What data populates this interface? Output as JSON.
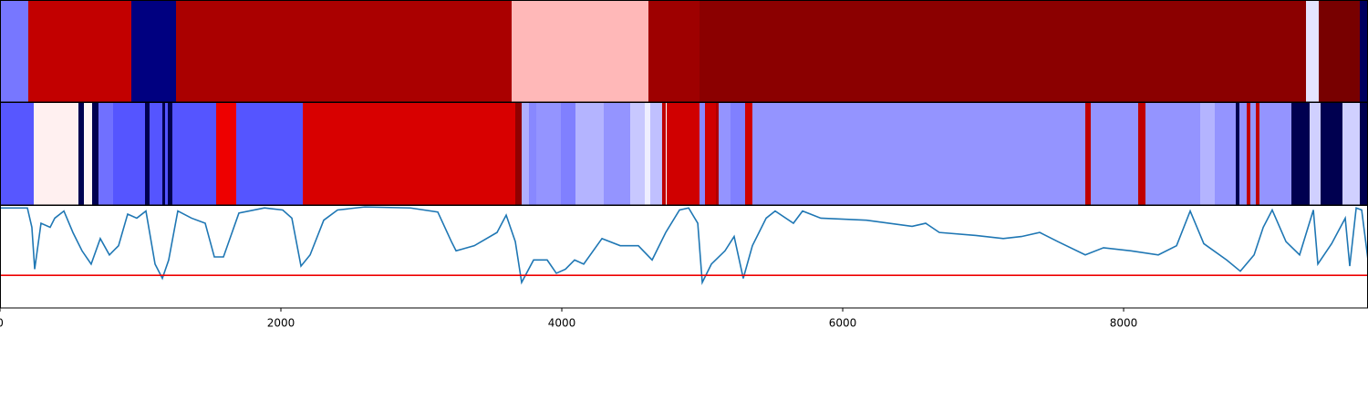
{
  "chart_data": [
    {
      "type": "segments",
      "xlim": [
        0,
        9740
      ],
      "bins": [
        0,
        201,
        935,
        1253,
        3643,
        4617,
        4981,
        9299,
        9390,
        9682,
        9740
      ],
      "colors": [
        "#7777ff",
        "#c20000",
        "#000080",
        "#aa0000",
        "#ffb8b8",
        "#9e0000",
        "#8b0000",
        "#e4e4ff",
        "#780000",
        "#000060"
      ]
    },
    {
      "type": "segments",
      "xlim": [
        0,
        9740
      ],
      "bins": [
        0,
        240,
        558,
        597,
        656,
        701,
        805,
        1032,
        1065,
        1156,
        1175,
        1195,
        1227,
        1539,
        1682,
        2156,
        3669,
        3714,
        3766,
        3818,
        3994,
        4097,
        4299,
        4487,
        4591,
        4630,
        4714,
        4740,
        4747,
        4981,
        5019,
        5097,
        5117,
        5201,
        5305,
        5357,
        7727,
        7766,
        8104,
        8156,
        8545,
        8649,
        8799,
        8825,
        8877,
        8903,
        8942,
        8968,
        9195,
        9325,
        9403,
        9558,
        9682,
        9740
      ],
      "colors": [
        "#5757ff",
        "#fff0f0",
        "#000050",
        "#fff5f5",
        "#000050",
        "#7070ff",
        "#5555ff",
        "#000050",
        "#5555ff",
        "#000050",
        "#5555ff",
        "#000050",
        "#5555ff",
        "#ee0000",
        "#5555ff",
        "#d80000",
        "#900000",
        "#b0b0ff",
        "#8888ff",
        "#9494ff",
        "#8080ff",
        "#b4b4ff",
        "#9494ff",
        "#c8c8ff",
        "#eeeeff",
        "#c0c0ff",
        "#c00000",
        "#ffffff",
        "#d00000",
        "#8888ff",
        "#d00000",
        "#b00000",
        "#9494ff",
        "#8080ff",
        "#d00000",
        "#9494ff",
        "#c00000",
        "#9494ff",
        "#c00000",
        "#9494ff",
        "#b4b4ff",
        "#9494ff",
        "#000050",
        "#9494ff",
        "#c00000",
        "#9494ff",
        "#c00000",
        "#9494ff",
        "#000050",
        "#d0d0ff",
        "#000050",
        "#d0d0ff",
        "#000050"
      ]
    },
    {
      "type": "line",
      "xlim": [
        0,
        9740
      ],
      "ylim": [
        0,
        1
      ],
      "xticks": [
        0,
        2000,
        4000,
        6000,
        8000
      ],
      "color": "#1f77b4",
      "hline": 0.32,
      "hline_color": "#ee0000",
      "x": [
        0,
        195,
        227,
        247,
        292,
        357,
        390,
        455,
        519,
        584,
        649,
        714,
        779,
        844,
        909,
        974,
        1039,
        1104,
        1156,
        1201,
        1266,
        1364,
        1461,
        1526,
        1591,
        1701,
        1883,
        2013,
        2078,
        2143,
        2208,
        2305,
        2403,
        2597,
        2922,
        3117,
        3214,
        3247,
        3377,
        3539,
        3604,
        3669,
        3714,
        3799,
        3896,
        3961,
        4026,
        4091,
        4156,
        4286,
        4416,
        4545,
        4643,
        4740,
        4838,
        4903,
        4968,
        5000,
        5065,
        5162,
        5227,
        5292,
        5357,
        5455,
        5519,
        5649,
        5714,
        5844,
        6169,
        6494,
        6591,
        6688,
        6948,
        7143,
        7273,
        7403,
        7532,
        7727,
        7857,
        8052,
        8247,
        8377,
        8474,
        8571,
        8734,
        8831,
        8929,
        8994,
        9058,
        9156,
        9253,
        9351,
        9383,
        9481,
        9578,
        9610,
        9656,
        9695,
        9740
      ],
      "values": [
        0.98,
        0.98,
        0.79,
        0.38,
        0.83,
        0.79,
        0.88,
        0.95,
        0.74,
        0.56,
        0.43,
        0.68,
        0.52,
        0.61,
        0.92,
        0.88,
        0.95,
        0.43,
        0.29,
        0.47,
        0.95,
        0.88,
        0.83,
        0.5,
        0.5,
        0.93,
        0.98,
        0.96,
        0.88,
        0.41,
        0.52,
        0.86,
        0.96,
        0.99,
        0.98,
        0.94,
        0.65,
        0.56,
        0.61,
        0.74,
        0.91,
        0.65,
        0.25,
        0.47,
        0.47,
        0.34,
        0.38,
        0.47,
        0.43,
        0.68,
        0.61,
        0.61,
        0.47,
        0.74,
        0.96,
        0.98,
        0.83,
        0.25,
        0.43,
        0.56,
        0.7,
        0.29,
        0.61,
        0.88,
        0.95,
        0.83,
        0.95,
        0.88,
        0.86,
        0.8,
        0.83,
        0.74,
        0.71,
        0.68,
        0.7,
        0.74,
        0.65,
        0.52,
        0.59,
        0.56,
        0.52,
        0.61,
        0.95,
        0.63,
        0.47,
        0.36,
        0.52,
        0.79,
        0.96,
        0.65,
        0.52,
        0.96,
        0.43,
        0.63,
        0.88,
        0.41,
        0.98,
        0.96,
        0.47
      ]
    }
  ]
}
